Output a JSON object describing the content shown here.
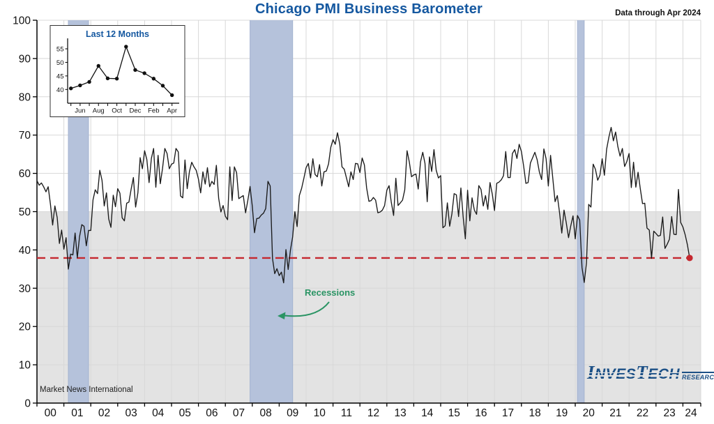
{
  "title": "Chicago PMI Business Barometer",
  "data_through": "Data through Apr 2024",
  "source": "Market News International",
  "annotations": {
    "recessions": "Recessions"
  },
  "logo": {
    "l1": "I",
    "l2": "NVES",
    "l3": "T",
    "l4": "ECH",
    "sub": "RESEARCH"
  },
  "colors": {
    "title_blue": "#1558a0",
    "line_black": "#1a1a1a",
    "recession_band": "#b5c2db",
    "recession_band_edge": "#a3b2d0",
    "shading_gray": "#e3e3e3",
    "gridline_gray": "#d8d8d8",
    "reference_red": "#c5282f",
    "recessions_green": "#2a9464",
    "logo_blue": "#1c5086"
  },
  "chart_data": [
    {
      "type": "line",
      "title": "Chicago PMI Business Barometer",
      "frequency": "monthly",
      "x_start": "2000-01",
      "x_end": "2024-04",
      "ylim": [
        0,
        100
      ],
      "yticks": [
        0,
        10,
        20,
        30,
        40,
        50,
        60,
        70,
        80,
        90,
        100
      ],
      "xtick_labels": [
        "00",
        "01",
        "02",
        "03",
        "04",
        "05",
        "06",
        "07",
        "08",
        "09",
        "10",
        "11",
        "12",
        "13",
        "14",
        "15",
        "16",
        "17",
        "18",
        "19",
        "20",
        "21",
        "22",
        "23",
        "24"
      ],
      "grid": true,
      "below_50_shaded": true,
      "reference_line": {
        "value": 37.9,
        "style": "dashed"
      },
      "last_point": {
        "label": "Apr 2024",
        "value": 37.9
      },
      "recession_bands": [
        {
          "from": "2001-03",
          "to": "2001-11"
        },
        {
          "from": "2007-12",
          "to": "2009-06"
        },
        {
          "from": "2020-02",
          "to": "2020-04"
        }
      ],
      "series": [
        {
          "name": "Chicago PMI",
          "values": [
            58.1,
            56.9,
            57.5,
            56.5,
            55.2,
            56.5,
            52.0,
            46.5,
            51.5,
            48.5,
            41.7,
            45.2,
            40.2,
            43.2,
            35.0,
            38.9,
            38.7,
            44.4,
            38.0,
            43.5,
            46.6,
            46.2,
            41.1,
            45.1,
            45.1,
            53.1,
            55.7,
            54.7,
            60.8,
            58.2,
            51.5,
            54.9,
            48.1,
            45.9,
            54.3,
            51.3,
            56.0,
            54.8,
            48.4,
            47.6,
            52.2,
            52.5,
            55.9,
            58.9,
            51.2,
            55.0,
            64.1,
            61.2,
            65.9,
            63.6,
            57.6,
            63.9,
            66.5,
            56.4,
            64.7,
            57.3,
            61.3,
            66.5,
            65.2,
            61.2,
            62.4,
            62.7,
            66.5,
            65.6,
            54.1,
            53.6,
            63.5,
            56.0,
            60.5,
            62.9,
            61.7,
            60.8,
            58.5,
            54.9,
            60.4,
            57.2,
            61.5,
            56.5,
            57.9,
            57.1,
            62.1,
            53.5,
            49.9,
            51.6,
            48.8,
            47.9,
            61.7,
            52.9,
            61.7,
            60.2,
            53.4,
            53.8,
            54.2,
            49.7,
            52.9,
            56.6,
            51.5,
            44.5,
            48.2,
            48.3,
            49.1,
            49.6,
            50.8,
            57.9,
            56.7,
            37.8,
            33.8,
            35.1,
            33.3,
            34.2,
            31.4,
            40.1,
            34.9,
            39.9,
            43.4,
            50.0,
            46.1,
            54.2,
            56.1,
            58.7,
            61.5,
            62.6,
            58.8,
            63.8,
            59.7,
            59.1,
            62.3,
            56.7,
            60.4,
            60.6,
            62.5,
            66.8,
            68.8,
            67.6,
            70.6,
            67.6,
            61.7,
            61.1,
            58.8,
            56.5,
            60.4,
            58.4,
            62.6,
            62.5,
            60.2,
            64.0,
            62.2,
            56.2,
            52.7,
            52.9,
            53.7,
            53.0,
            49.7,
            49.9,
            50.4,
            51.6,
            55.6,
            56.8,
            52.4,
            49.0,
            58.7,
            51.6,
            52.3,
            53.0,
            55.7,
            65.9,
            63.0,
            59.1,
            59.6,
            59.8,
            55.9,
            63.0,
            65.5,
            62.6,
            52.6,
            64.3,
            60.5,
            66.2,
            60.8,
            58.8,
            59.4,
            45.8,
            46.3,
            52.3,
            46.2,
            49.4,
            54.7,
            54.4,
            48.7,
            56.2,
            48.7,
            42.9,
            55.6,
            47.6,
            53.6,
            50.4,
            49.3,
            56.8,
            55.8,
            51.5,
            54.2,
            50.6,
            57.6,
            54.6,
            50.3,
            57.4,
            57.7,
            58.3,
            59.4,
            65.7,
            58.9,
            58.9,
            65.2,
            66.2,
            63.9,
            67.6,
            65.7,
            61.9,
            57.4,
            57.6,
            62.7,
            64.1,
            65.5,
            63.6,
            60.4,
            58.4,
            66.4,
            63.8,
            56.7,
            64.7,
            58.7,
            52.6,
            54.2,
            49.7,
            44.4,
            50.4,
            47.1,
            43.2,
            46.3,
            48.9,
            42.9,
            49.0,
            47.8,
            35.4,
            31.5,
            36.6,
            51.9,
            51.2,
            62.4,
            61.1,
            58.2,
            59.5,
            63.8,
            59.5,
            66.3,
            69.5,
            72.0,
            68.5,
            70.8,
            67.0,
            64.5,
            66.5,
            61.8,
            63.1,
            65.2,
            56.3,
            62.9,
            56.4,
            60.3,
            56.0,
            52.1,
            52.2,
            45.7,
            45.2,
            37.8,
            44.9,
            44.3,
            43.6,
            43.8,
            48.6,
            40.4,
            41.5,
            42.8,
            48.7,
            44.1,
            44.0,
            55.8,
            47.2,
            46.0,
            44.0,
            41.4,
            37.9
          ]
        }
      ]
    },
    {
      "type": "line",
      "title": "Last 12 Months",
      "categories": [
        "May",
        "Jun",
        "Jul",
        "Aug",
        "Sep",
        "Oct",
        "Nov",
        "Dec",
        "Jan",
        "Feb",
        "Mar",
        "Apr"
      ],
      "xtick_labels": [
        "Jun",
        "Aug",
        "Oct",
        "Dec",
        "Feb",
        "Apr"
      ],
      "yticks": [
        40,
        45,
        50,
        55
      ],
      "values": [
        40.4,
        41.5,
        42.8,
        48.7,
        44.1,
        44.0,
        55.8,
        47.2,
        46.0,
        44.0,
        41.4,
        37.9
      ]
    }
  ]
}
